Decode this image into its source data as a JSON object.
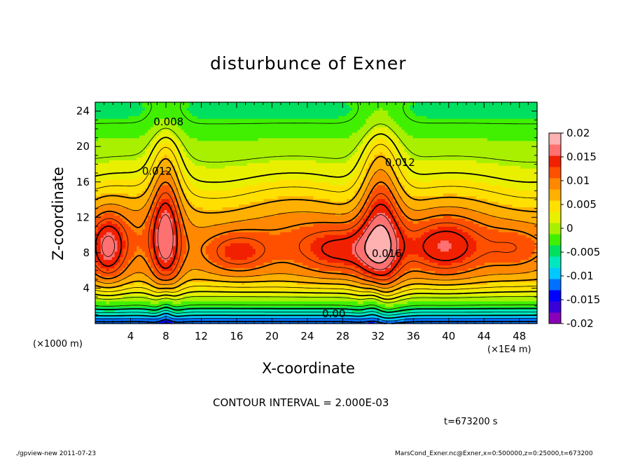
{
  "chart_data": {
    "type": "heatmap",
    "title": "disturbunce of Exner",
    "xlabel": "X-coordinate",
    "ylabel": "Z-coordinate",
    "x_unit_left": "(×1000 m)",
    "x_unit_right": "(×1E4 m)",
    "xticks": [
      "4",
      "8",
      "12",
      "16",
      "20",
      "24",
      "28",
      "32",
      "36",
      "40",
      "44",
      "48"
    ],
    "xtick_values": [
      4,
      8,
      12,
      16,
      20,
      24,
      28,
      32,
      36,
      40,
      44,
      48
    ],
    "yticks": [
      "4",
      "8",
      "12",
      "16",
      "20",
      "24"
    ],
    "ytick_values": [
      4,
      8,
      12,
      16,
      20,
      24
    ],
    "xlim": [
      0,
      50
    ],
    "ylim": [
      0,
      25
    ],
    "colorbar_ticks": [
      "0.02",
      "0.015",
      "0.01",
      "0.005",
      "0",
      "-0.005",
      "-0.01",
      "-0.015",
      "-0.02"
    ],
    "colorbar_values": [
      0.02,
      0.015,
      0.01,
      0.005,
      0,
      -0.005,
      -0.01,
      -0.015,
      -0.02
    ],
    "contour_labels": [
      {
        "text": "0.008",
        "x": 8.3,
        "y": 22.4
      },
      {
        "text": "0.012",
        "x": 7.0,
        "y": 16.8
      },
      {
        "text": "0.012",
        "x": 34.5,
        "y": 17.8
      },
      {
        "text": "0.016",
        "x": 33.0,
        "y": 7.5
      },
      {
        "text": "0.00",
        "x": 27.0,
        "y": 0.7
      }
    ],
    "contour_interval_text": "CONTOUR INTERVAL = 2.000E-03",
    "time_text": "t=673200 s"
  },
  "footer": {
    "left": "./gpview-new  2011-07-23",
    "right": "MarsCond_Exner.nc@Exner,x=0:500000,z=0:25000,t=673200"
  },
  "colors": {
    "scale": [
      "#8a00b8",
      "#3a00d8",
      "#0000ff",
      "#0070ff",
      "#00c8ff",
      "#00e8c0",
      "#00e060",
      "#40f000",
      "#a8f000",
      "#e8f000",
      "#ffe000",
      "#ffb000",
      "#ff8800",
      "#ff5000",
      "#f02000",
      "#ff7070",
      "#ffb0b0"
    ]
  }
}
